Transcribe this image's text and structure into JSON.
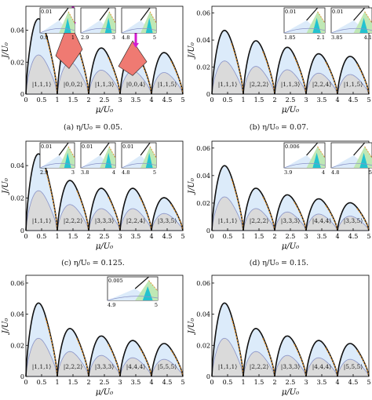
{
  "figure": {
    "panels": [
      {
        "id": "a",
        "caption": "(a) η/U₀ = 0.05.",
        "ylabel": "J/U₀",
        "xlabel": "μ/U₀",
        "yticks": [
          "0",
          "0.02",
          "0.04"
        ],
        "xticks": [
          "0",
          "0.5",
          "1",
          "1.5",
          "2",
          "2.5",
          "3",
          "3.5",
          "4",
          "4.5",
          "5"
        ],
        "lobes": [
          {
            "label": "|1,1,1⟩",
            "mu_start": 0,
            "mu_end": 1,
            "peak": 0.049
          },
          {
            "label": "|0,0,2⟩",
            "mu_start": 1,
            "mu_end": 2,
            "peak": 0.04
          },
          {
            "label": "|1,1,3⟩",
            "mu_start": 2,
            "mu_end": 3,
            "peak": 0.03
          },
          {
            "label": "|0,0,4⟩",
            "mu_start": 3,
            "mu_end": 4,
            "peak": 0.029
          },
          {
            "label": "|1,1,5⟩",
            "mu_start": 4,
            "mu_end": 5,
            "peak": 0.027
          }
        ],
        "insets": [
          {
            "ytick": "0.01",
            "xticks": [
              "0.9",
              "1"
            ]
          },
          {
            "ytick": "",
            "xticks": [
              "2.9",
              "3"
            ]
          },
          {
            "ytick": "",
            "xticks": [
              "4.8",
              "5"
            ]
          }
        ]
      },
      {
        "id": "b",
        "caption": "(b) η/U₀ = 0.07.",
        "ylabel": "J/U₀",
        "xlabel": "μ/U₀",
        "yticks": [
          "0",
          "0.02",
          "0.04",
          "0.06"
        ],
        "xticks": [
          "0",
          "0.5",
          "1",
          "1.5",
          "2",
          "2.5",
          "3",
          "3.5",
          "4",
          "4.5",
          "5"
        ],
        "lobes": [
          {
            "label": "|1,1,1⟩",
            "mu_start": 0,
            "mu_end": 1,
            "peak": 0.049
          },
          {
            "label": "|2,2,2⟩",
            "mu_start": 1,
            "mu_end": 2,
            "peak": 0.041
          },
          {
            "label": "|1,1,3⟩",
            "mu_start": 2,
            "mu_end": 3,
            "peak": 0.036
          },
          {
            "label": "|2,2,4⟩",
            "mu_start": 3,
            "mu_end": 4,
            "peak": 0.031
          },
          {
            "label": "|1,1,5⟩",
            "mu_start": 4,
            "mu_end": 5,
            "peak": 0.029
          }
        ],
        "insets": [
          {
            "ytick": "0.01",
            "xticks": [
              "1.85",
              "2.1"
            ]
          },
          {
            "ytick": "0.01",
            "xticks": [
              "3.85",
              "4.1"
            ]
          }
        ]
      },
      {
        "id": "c",
        "caption": "(c) η/U₀ = 0.125.",
        "ylabel": "J/U₀",
        "xlabel": "μ/U₀",
        "yticks": [
          "0",
          "0.02",
          "0.04"
        ],
        "xticks": [
          "0",
          "0.5",
          "1",
          "1.5",
          "2",
          "2.5",
          "3",
          "3.5",
          "4",
          "4.5",
          "5"
        ],
        "lobes": [
          {
            "label": "|1,1,1⟩",
            "mu_start": 0,
            "mu_end": 1,
            "peak": 0.049
          },
          {
            "label": "|2,2,2⟩",
            "mu_start": 1,
            "mu_end": 2,
            "peak": 0.032
          },
          {
            "label": "|3,3,3⟩",
            "mu_start": 2,
            "mu_end": 3,
            "peak": 0.027
          },
          {
            "label": "|2,2,4⟩",
            "mu_start": 3,
            "mu_end": 4,
            "peak": 0.027
          },
          {
            "label": "|3,3,5⟩",
            "mu_start": 4,
            "mu_end": 5,
            "peak": 0.021
          }
        ],
        "insets": [
          {
            "ytick": "0.01",
            "xticks": [
              "2.9",
              "3"
            ]
          },
          {
            "ytick": "0.01",
            "xticks": [
              "3.8",
              "4"
            ]
          },
          {
            "ytick": "0.01",
            "xticks": [
              "4.8",
              "5"
            ]
          }
        ]
      },
      {
        "id": "d",
        "caption": "(d) η/U₀ = 0.15.",
        "ylabel": "J/U₀",
        "xlabel": "μ/U₀",
        "yticks": [
          "0",
          "0.02",
          "0.04",
          "0.06"
        ],
        "xticks": [
          "0",
          "0.5",
          "1",
          "1.5",
          "2",
          "2.5",
          "3",
          "3.5",
          "4",
          "4.5",
          "5"
        ],
        "lobes": [
          {
            "label": "|1,1,1⟩",
            "mu_start": 0,
            "mu_end": 1,
            "peak": 0.049
          },
          {
            "label": "|2,2,2⟩",
            "mu_start": 1,
            "mu_end": 2,
            "peak": 0.032
          },
          {
            "label": "|3,3,3⟩",
            "mu_start": 2,
            "mu_end": 3,
            "peak": 0.027
          },
          {
            "label": "|4,4,4⟩",
            "mu_start": 3,
            "mu_end": 4,
            "peak": 0.024
          },
          {
            "label": "|3,3,5⟩",
            "mu_start": 4,
            "mu_end": 5,
            "peak": 0.021
          }
        ],
        "insets": [
          {
            "ytick": "0.006",
            "xticks": [
              "3.9",
              "4"
            ]
          },
          {
            "ytick": "",
            "xticks": [
              "4.8",
              "5"
            ]
          }
        ]
      },
      {
        "id": "e",
        "caption": "",
        "ylabel": "J/U₀",
        "xlabel": "μ/U₀",
        "yticks": [
          "0",
          "0.02",
          "0.04",
          "0.06"
        ],
        "xticks": [
          "0",
          "0.5",
          "1",
          "1.5",
          "2",
          "2.5",
          "3",
          "3.5",
          "4",
          "4.5",
          "5"
        ],
        "lobes": [
          {
            "label": "|1,1,1⟩",
            "mu_start": 0,
            "mu_end": 1,
            "peak": 0.049
          },
          {
            "label": "|2,2,2⟩",
            "mu_start": 1,
            "mu_end": 2,
            "peak": 0.032
          },
          {
            "label": "|3,3,3⟩",
            "mu_start": 2,
            "mu_end": 3,
            "peak": 0.027
          },
          {
            "label": "|4,4,4⟩",
            "mu_start": 3,
            "mu_end": 4,
            "peak": 0.024
          },
          {
            "label": "|5,5,5⟩",
            "mu_start": 4,
            "mu_end": 5,
            "peak": 0.022
          }
        ],
        "insets": [
          {
            "ytick": "0.005",
            "xticks": [
              "4.9",
              "5"
            ]
          }
        ]
      },
      {
        "id": "f",
        "caption": "",
        "ylabel": "J/U₀",
        "xlabel": "μ/U₀",
        "yticks": [
          "0",
          "0.02",
          "0.04",
          "0.06"
        ],
        "xticks": [
          "0",
          "0.5",
          "1",
          "1.5",
          "2",
          "2.5",
          "3",
          "3.5",
          "4",
          "4.5",
          "5"
        ],
        "lobes": [
          {
            "label": "|1,1,1⟩",
            "mu_start": 0,
            "mu_end": 1,
            "peak": 0.049
          },
          {
            "label": "|2,2,2⟩",
            "mu_start": 1,
            "mu_end": 2,
            "peak": 0.032
          },
          {
            "label": "|3,3,3⟩",
            "mu_start": 2,
            "mu_end": 3,
            "peak": 0.027
          },
          {
            "label": "|4,4,4⟩",
            "mu_start": 3,
            "mu_end": 4,
            "peak": 0.024
          },
          {
            "label": "|5,5,5⟩",
            "mu_start": 4,
            "mu_end": 5,
            "peak": 0.022
          }
        ],
        "insets": []
      }
    ]
  },
  "colors": {
    "outer_fill": "#dcebfa",
    "inner_fill": "#dadada",
    "outer_line": "#111111",
    "inner_line": "#8a93c7",
    "dashed": "#e0902a",
    "red_fill": "#ef7a72",
    "cyan_fill": "#23c3d0",
    "green_fill": "#bfe8b5",
    "arrow": "#d21bd2"
  }
}
